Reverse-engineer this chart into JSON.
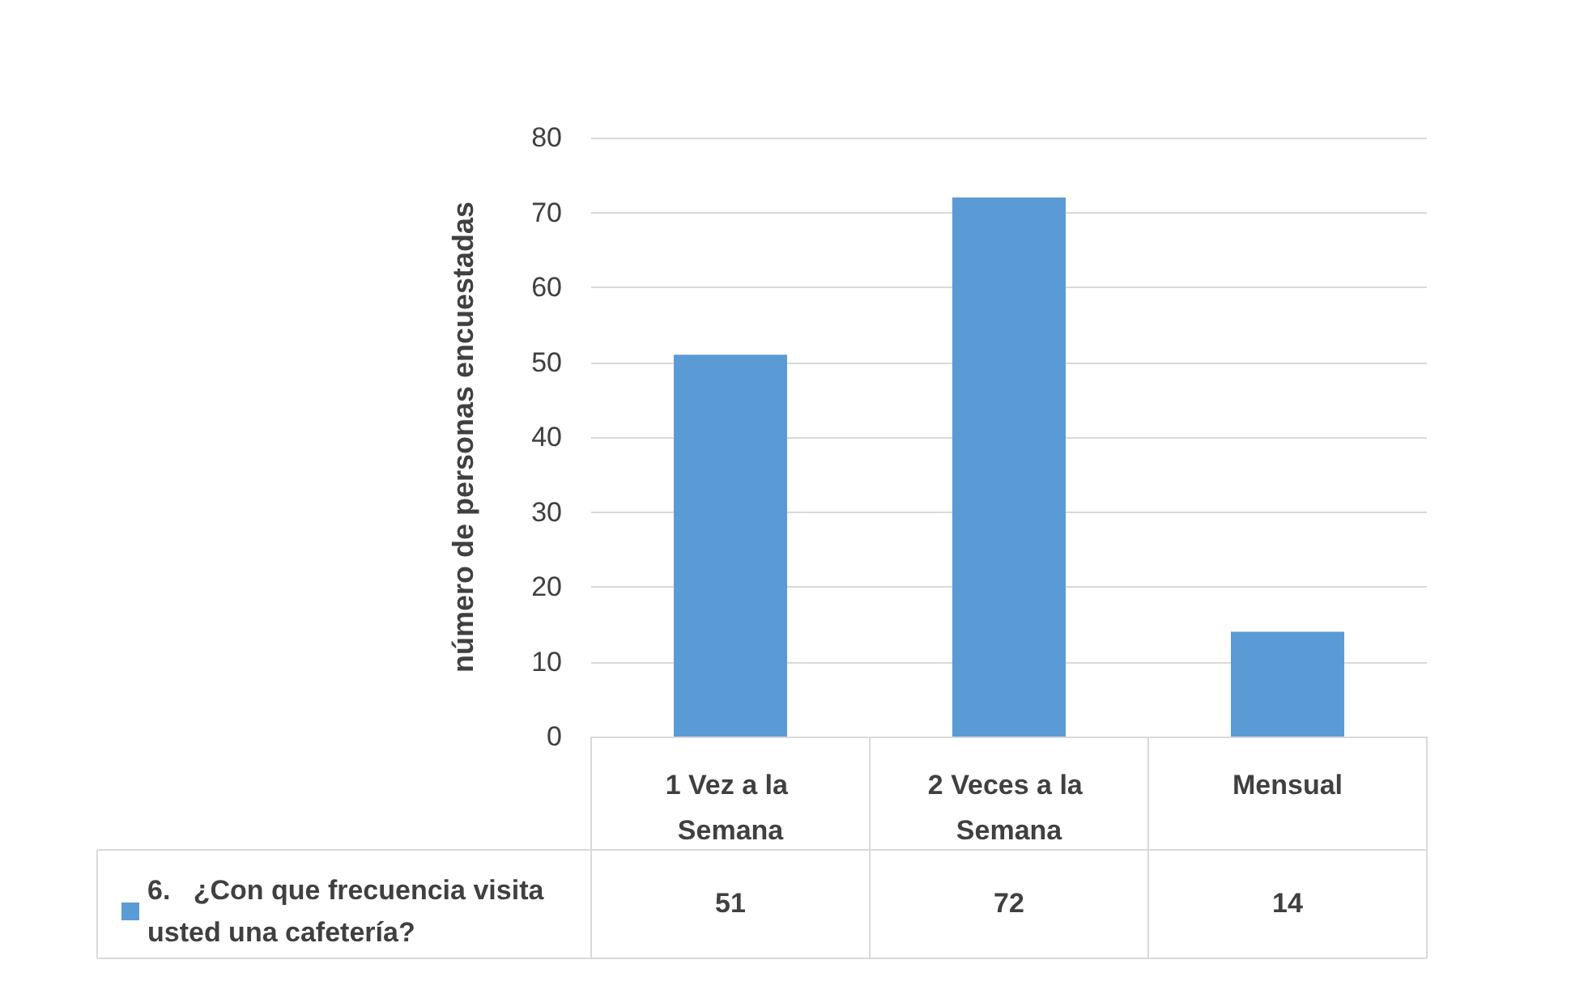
{
  "chart_data": {
    "type": "bar",
    "ylabel": "número de personas encuestadas",
    "categories": [
      "1 Vez a la Semana",
      "2 Veces a la Semana",
      "Mensual"
    ],
    "series": [
      {
        "name": "6.   ¿Con que frecuencia visita usted una cafetería?",
        "color": "#5b9bd5",
        "values": [
          51,
          72,
          14
        ]
      }
    ],
    "ylim": [
      0,
      80
    ],
    "yticks": [
      0,
      10,
      20,
      30,
      40,
      50,
      60,
      70,
      80
    ],
    "grid": "y",
    "legend": "bottom left",
    "data_labels": true
  }
}
